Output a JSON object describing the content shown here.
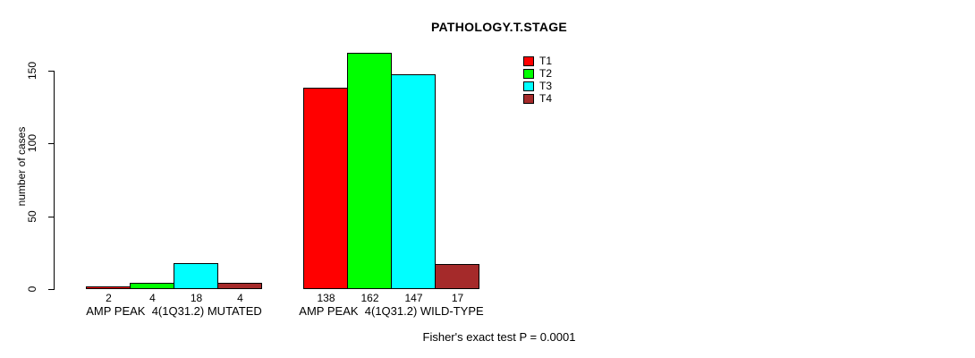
{
  "chart_data": {
    "type": "bar",
    "title": "PATHOLOGY.T.STAGE",
    "ylabel": "number of cases",
    "xlabel": "",
    "ylim": [
      0,
      162
    ],
    "yticks": [
      0,
      50,
      100,
      150
    ],
    "grid": false,
    "legend_position": "top-right",
    "bar_border_color": "#000000",
    "categories": [
      "AMP PEAK  4(1Q31.2) MUTATED",
      "AMP PEAK  4(1Q31.2) WILD-TYPE"
    ],
    "series": [
      {
        "name": "T1",
        "color": "#FF0000",
        "values": [
          2,
          138
        ]
      },
      {
        "name": "T2",
        "color": "#00FF00",
        "values": [
          4,
          162
        ]
      },
      {
        "name": "T3",
        "color": "#00FFFF",
        "values": [
          18,
          147
        ]
      },
      {
        "name": "T4",
        "color": "#A52A2A",
        "values": [
          4,
          17
        ]
      }
    ],
    "bar_value_labels": [
      [
        "2",
        "4",
        "18",
        "4"
      ],
      [
        "138",
        "162",
        "147",
        "17"
      ]
    ],
    "annotation": "Fisher's exact test P = 0.0001"
  }
}
